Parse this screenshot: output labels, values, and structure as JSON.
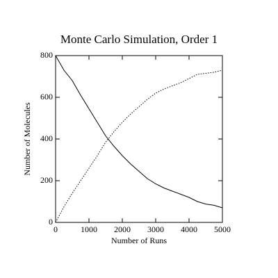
{
  "chart_data": {
    "type": "line",
    "title": "Monte Carlo Simulation, Order 1",
    "xlabel": "Number of Runs",
    "ylabel": "Number of Molecules",
    "x": [
      0,
      250,
      500,
      750,
      1000,
      1250,
      1500,
      1750,
      2000,
      2250,
      2500,
      2750,
      3000,
      3250,
      3500,
      3750,
      4000,
      4250,
      4500,
      4750,
      5000
    ],
    "series": [
      {
        "color": "#000000",
        "style": "solid",
        "values": [
          800,
          730,
          680,
          610,
          545,
          480,
          415,
          365,
          320,
          280,
          245,
          210,
          185,
          165,
          150,
          135,
          120,
          100,
          88,
          82,
          70
        ]
      },
      {
        "color": "#000000",
        "style": "dotted",
        "values": [
          0,
          75,
          140,
          200,
          260,
          320,
          385,
          435,
          480,
          520,
          555,
          590,
          620,
          640,
          655,
          670,
          690,
          710,
          715,
          720,
          730
        ]
      }
    ],
    "xlim": [
      0,
      5000
    ],
    "xticks": [
      0,
      1000,
      2000,
      3000,
      4000,
      5000
    ],
    "ylim": [
      0,
      800
    ],
    "yticks": [
      0,
      200,
      400,
      600,
      800
    ]
  }
}
